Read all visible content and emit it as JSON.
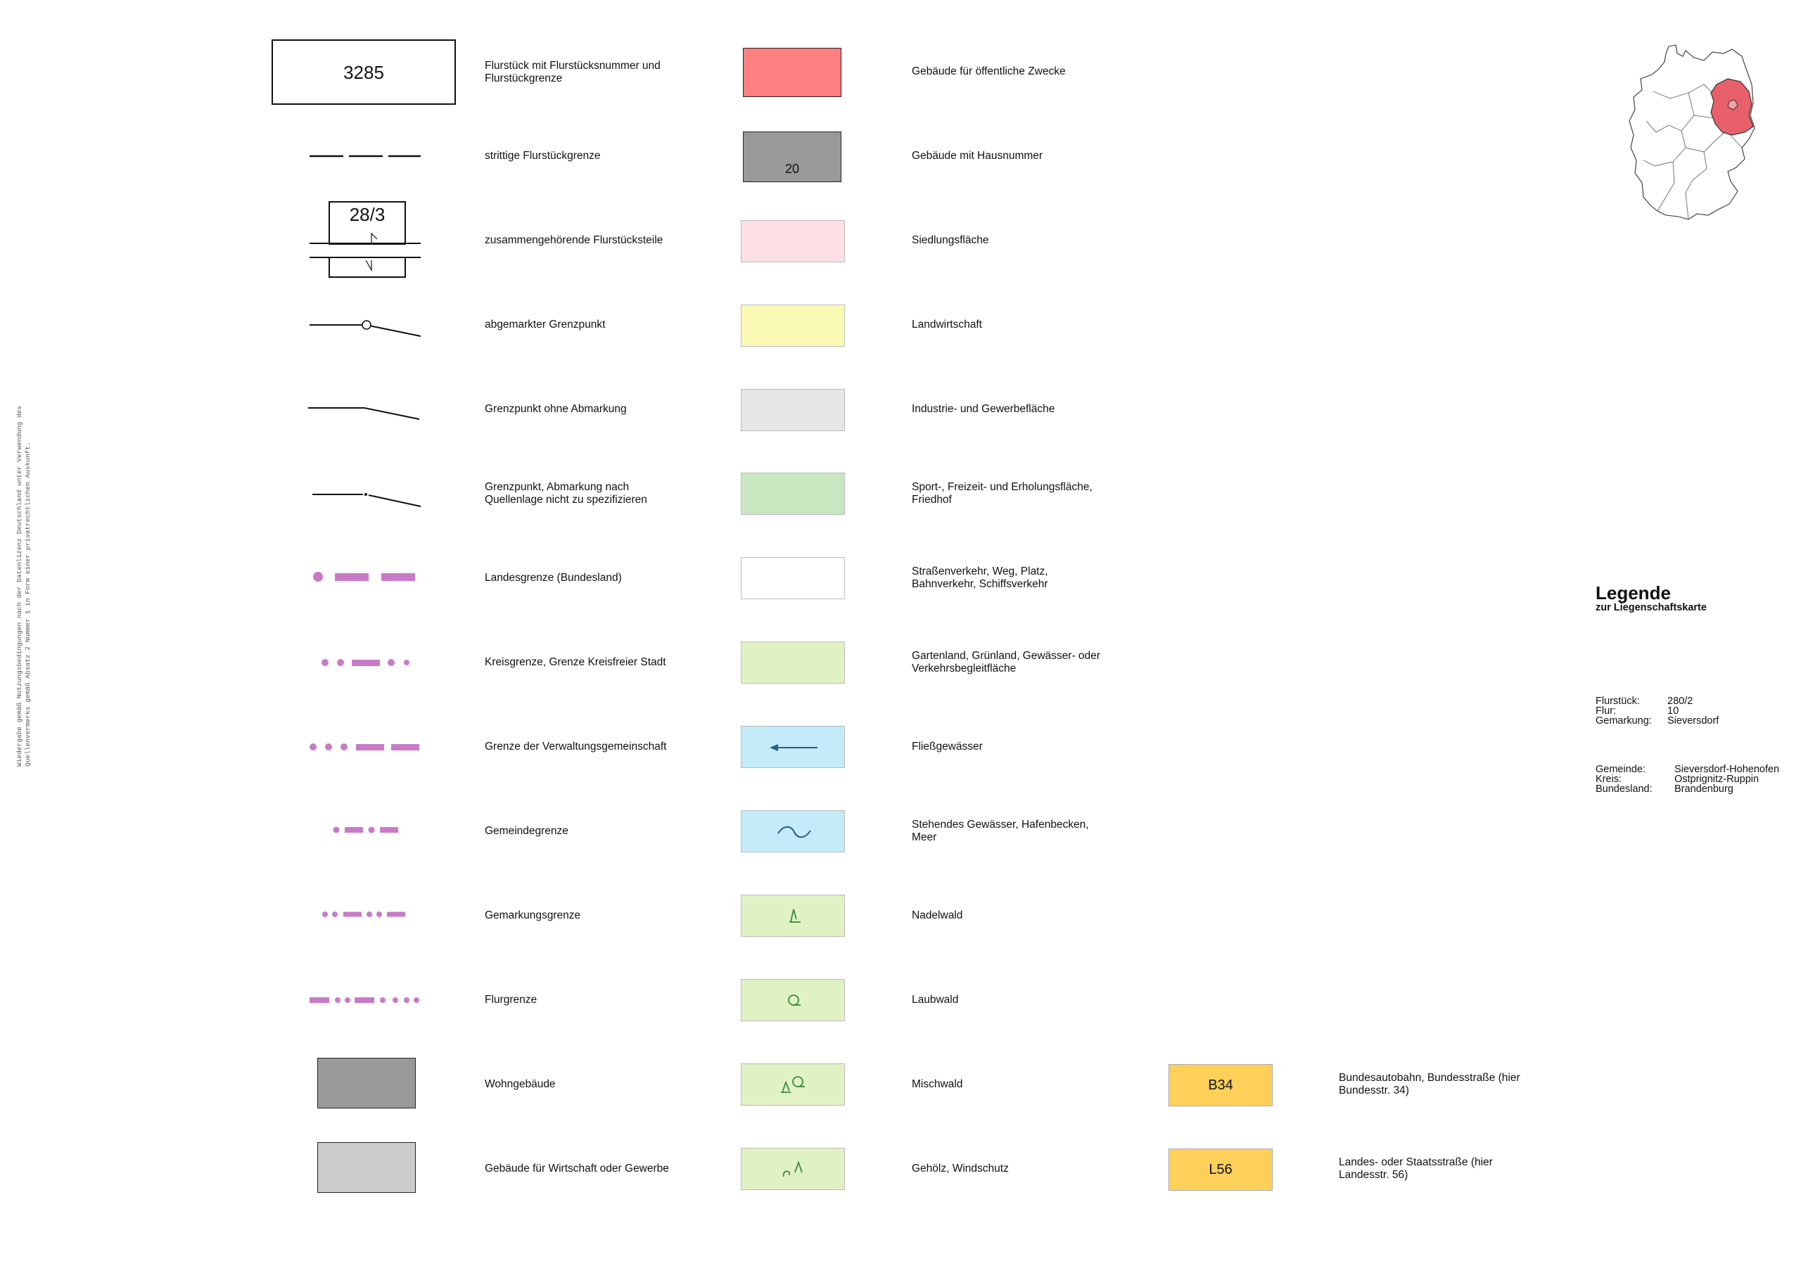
{
  "side_note": "Wiedergabe gemäß Nutzungsbedingungen nach der Datenlizenz Deutschland unter Verwendung des\nQuellenvermerks gemäß Absatz 2 Nummer 1 in Form einer privatrechtlichen Auskunft.",
  "col1": [
    {
      "label": "Flurstück mit Flurstücksnummer und\nFlurstückgrenze",
      "sym_text": "3285"
    },
    {
      "label": "strittige Flurstückgrenze"
    },
    {
      "label": "zusammengehörende Flurstücksteile",
      "sym_text": "28/3"
    },
    {
      "label": "abgemarkter Grenzpunkt"
    },
    {
      "label": "Grenzpunkt ohne Abmarkung"
    },
    {
      "label": "Grenzpunkt, Abmarkung nach\nQuellenlage nicht zu spezifizieren"
    },
    {
      "label": "Landesgrenze (Bundesland)"
    },
    {
      "label": "Kreisgrenze, Grenze Kreisfreier Stadt"
    },
    {
      "label": "Grenze der Verwaltungsgemeinschaft"
    },
    {
      "label": "Gemeindegrenze"
    },
    {
      "label": "Gemarkungsgrenze"
    },
    {
      "label": "Flurgrenze"
    },
    {
      "label": "Wohngebäude"
    },
    {
      "label": "Gebäude für Wirtschaft oder Gewerbe"
    }
  ],
  "col2": [
    {
      "label": "Gebäude für öffentliche Zwecke",
      "color": "#ff8080"
    },
    {
      "label": "Gebäude mit Hausnummer",
      "color": "#999999",
      "sym_text": "20"
    },
    {
      "label": "Siedlungsfläche",
      "color": "#fce0e4"
    },
    {
      "label": "Landwirtschaft",
      "color": "#fafab4"
    },
    {
      "label": "Industrie- und Gewerbefläche",
      "color": "#e6e6e6"
    },
    {
      "label": "Sport-, Freizeit- und Erholungsfläche,\nFriedhof",
      "color": "#c8e6c0"
    },
    {
      "label": "Straßenverkehr, Weg, Platz,\nBahnverkehr, Schiffsverkehr",
      "color": "#ffffff"
    },
    {
      "label": "Gartenland, Grünland, Gewässer- oder\nVerkehrsbegleitfläche",
      "color": "#e0f2c4"
    },
    {
      "label": "Fließgewässer",
      "color": "#c4ebf8",
      "icon": "arrow-left-icon"
    },
    {
      "label": "Stehendes Gewässer, Hafenbecken,\nMeer",
      "color": "#c4ebf8",
      "icon": "wave-icon"
    },
    {
      "label": "Nadelwald",
      "color": "#e0f2c4",
      "icon": "conifer-icon"
    },
    {
      "label": "Laubwald",
      "color": "#e0f2c4",
      "icon": "deciduous-icon"
    },
    {
      "label": "Mischwald",
      "color": "#e0f2c4",
      "icon": "mixed-forest-icon"
    },
    {
      "label": "Gehölz, Windschutz",
      "color": "#e0f2c4",
      "icon": "shrub-icon"
    }
  ],
  "col3": [
    {
      "label": "Bundesautobahn, Bundesstraße (hier\nBundesstr. 34)",
      "sym_text": "B34",
      "color": "#fdd05a"
    },
    {
      "label": "Landes- oder Staatsstraße (hier\nLandesstr. 56)",
      "sym_text": "L56",
      "color": "#fdd05a"
    }
  ],
  "boundary_color": "#c87ac8",
  "highlight_state_color": "#e8606a",
  "legend": {
    "title": "Legende",
    "subtitle": "zur Liegenschaftskarte"
  },
  "parcel": [
    {
      "k": "Flurstück:",
      "v": "280/2"
    },
    {
      "k": "Flur:",
      "v": "10"
    },
    {
      "k": "Gemarkung:",
      "v": "Sieversdorf"
    }
  ],
  "admin": [
    {
      "k": "Gemeinde:",
      "v": "Sieversdorf-Hohenofen"
    },
    {
      "k": "Kreis:",
      "v": "Ostprignitz-Ruppin"
    },
    {
      "k": "Bundesland:",
      "v": "Brandenburg"
    }
  ]
}
